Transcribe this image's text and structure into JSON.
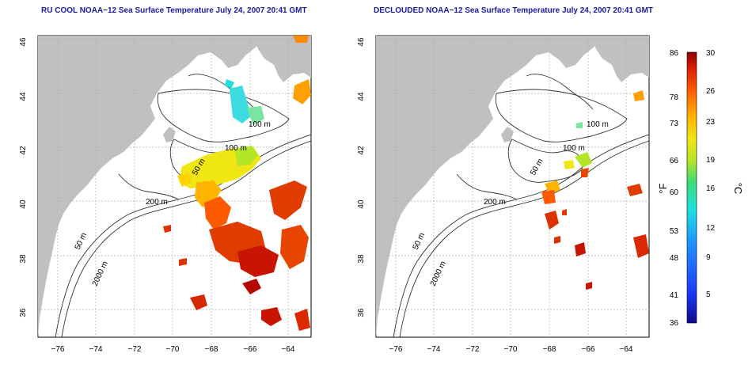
{
  "panels": [
    {
      "title": "RU COOL NOAA−12 Sea Surface Temperature July 24, 2007 20:41 GMT"
    },
    {
      "title": "DECLOUDED NOAA−12 Sea Surface Temperature July 24, 2007 20:41 GMT"
    }
  ],
  "axes": {
    "lon_ticks": [
      "−76",
      "−74",
      "−72",
      "−70",
      "−68",
      "−66",
      "−64"
    ],
    "lat_ticks": [
      "36",
      "38",
      "40",
      "42",
      "44",
      "46"
    ]
  },
  "contour_labels": {
    "m100a": "100 m",
    "m100b": "100 m",
    "m50a": "50 m",
    "m200": "200 m",
    "m50b": "50 m",
    "m2000": "2000 m"
  },
  "colorbar": {
    "fahrenheit_ticks": [
      "86",
      "78",
      "73",
      "66",
      "60",
      "53",
      "48",
      "41",
      "36"
    ],
    "celsius_ticks": [
      "30",
      "26",
      "23",
      "19",
      "16",
      "12",
      "9",
      "5"
    ],
    "unit_f": "°F",
    "unit_c": "°C"
  },
  "colors": {
    "land": "#c0c0c0",
    "title": "#1a1aa0",
    "grid": "#b0b0b0"
  }
}
